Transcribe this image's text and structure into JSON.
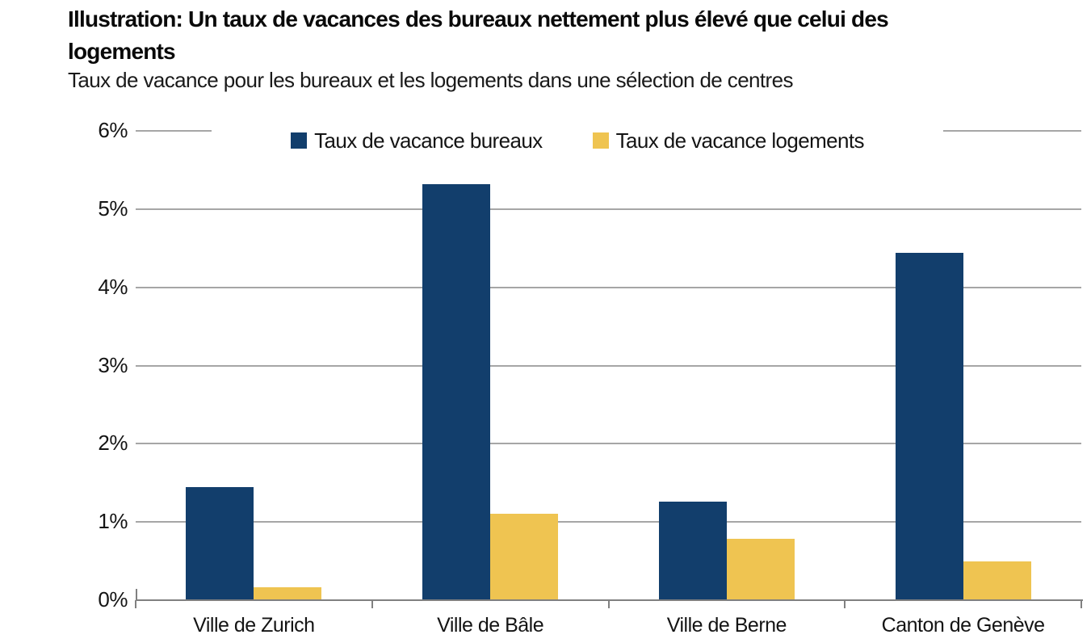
{
  "header": {
    "title_lines": [
      "Illustration: Un taux de vacances des bureaux nettement plus élevé que celui des",
      "logements"
    ],
    "subtitle": "Taux de vacance pour les bureaux et les logements dans une sélection de centres"
  },
  "colors": {
    "bureaux": "#123E6C",
    "logements": "#EFC451",
    "gridline": "#A6A6A6",
    "axis_line": "#808080",
    "text": "#141414",
    "background": "#FFFFFF"
  },
  "chart_data": {
    "type": "bar",
    "title": "Illustration: Un taux de vacances des bureaux nettement plus élevé que celui des logements",
    "subtitle": "Taux de vacance pour les bureaux et les logements dans une sélection de centres",
    "categories": [
      "Ville de Zurich",
      "Ville de Bâle",
      "Ville de Berne",
      "Canton de Genève"
    ],
    "series": [
      {
        "name": "Taux de vacance bureaux",
        "color_key": "bureaux",
        "values": [
          1.45,
          5.32,
          1.26,
          4.44
        ]
      },
      {
        "name": "Taux de vacance logements",
        "color_key": "logements",
        "values": [
          0.17,
          1.1,
          0.79,
          0.5
        ]
      }
    ],
    "xlabel": "",
    "ylabel": "",
    "ylim": [
      0,
      6
    ],
    "ytick_step": 1,
    "ytick_labels": [
      "0%",
      "1%",
      "2%",
      "3%",
      "4%",
      "5%",
      "6%"
    ],
    "grid": true,
    "legend_position": "top-inside"
  }
}
